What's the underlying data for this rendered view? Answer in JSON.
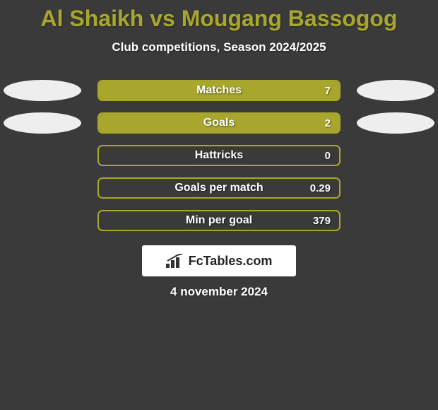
{
  "background_color": "#3a3a3a",
  "title": "Al Shaikh vs Mougang Bassogog",
  "title_color": "#a8a62c",
  "title_fontsize": 32,
  "subtitle": "Club competitions, Season 2024/2025",
  "subtitle_color": "#ffffff",
  "subtitle_fontsize": 17,
  "ellipse_color": "#eeeeee",
  "date": "4 november 2024",
  "logo_text": "FcTables.com",
  "rows": [
    {
      "label": "Matches",
      "value": "7",
      "fill_pct": 100,
      "fill_color": "#a8a62c",
      "border_color": "#a8a62c",
      "show_ellipses": true
    },
    {
      "label": "Goals",
      "value": "2",
      "fill_pct": 100,
      "fill_color": "#a8a62c",
      "border_color": "#a8a62c",
      "show_ellipses": true
    },
    {
      "label": "Hattricks",
      "value": "0",
      "fill_pct": 0,
      "fill_color": "#a8a62c",
      "border_color": "#a8a62c",
      "show_ellipses": false
    },
    {
      "label": "Goals per match",
      "value": "0.29",
      "fill_pct": 0,
      "fill_color": "#a8a62c",
      "border_color": "#a8a62c",
      "show_ellipses": false
    },
    {
      "label": "Min per goal",
      "value": "379",
      "fill_pct": 0,
      "fill_color": "#a8a62c",
      "border_color": "#a8a62c",
      "show_ellipses": false
    }
  ]
}
